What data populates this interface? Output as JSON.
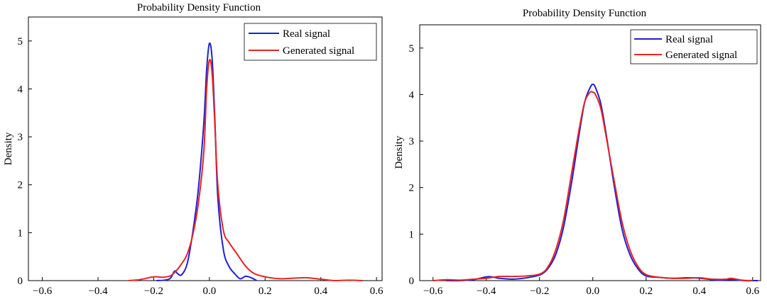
{
  "chart_data": [
    {
      "type": "line",
      "title": "Probability Density Function",
      "xlabel": "",
      "ylabel": "Density",
      "xlim": [
        -0.65,
        0.62
      ],
      "ylim": [
        0,
        5.5
      ],
      "xticks": [
        -0.6,
        -0.4,
        -0.2,
        0.0,
        0.2,
        0.4,
        0.6
      ],
      "xtick_labels": [
        "−0.6",
        "−0.4",
        "−0.2",
        "0.0",
        "0.2",
        "0.4",
        "0.6"
      ],
      "yticks": [
        0,
        1,
        2,
        3,
        4,
        5
      ],
      "ytick_labels": [
        "0",
        "1",
        "2",
        "3",
        "4",
        "5"
      ],
      "grid": false,
      "legend_position": "top-right",
      "series": [
        {
          "name": "Real signal",
          "color": "#1f1fd6",
          "x": [
            -0.19,
            -0.16,
            -0.14,
            -0.125,
            -0.115,
            -0.1,
            -0.08,
            -0.06,
            -0.04,
            -0.02,
            -0.01,
            0.0,
            0.01,
            0.02,
            0.03,
            0.05,
            0.07,
            0.09,
            0.11,
            0.13,
            0.15,
            0.17
          ],
          "y": [
            0.0,
            0.01,
            0.05,
            0.2,
            0.15,
            0.12,
            0.35,
            1.0,
            1.9,
            3.3,
            4.4,
            4.95,
            4.6,
            3.3,
            1.75,
            0.65,
            0.3,
            0.15,
            0.04,
            0.09,
            0.06,
            0.0
          ]
        },
        {
          "name": "Generated signal",
          "color": "#e82323",
          "x": [
            -0.29,
            -0.25,
            -0.2,
            -0.17,
            -0.14,
            -0.12,
            -0.1,
            -0.08,
            -0.06,
            -0.04,
            -0.02,
            -0.01,
            0.0,
            0.01,
            0.02,
            0.03,
            0.05,
            0.07,
            0.1,
            0.13,
            0.16,
            0.2,
            0.25,
            0.3,
            0.35,
            0.4,
            0.45,
            0.5,
            0.55
          ],
          "y": [
            0.0,
            0.02,
            0.08,
            0.07,
            0.1,
            0.2,
            0.35,
            0.55,
            0.95,
            1.6,
            2.7,
            4.0,
            4.6,
            4.3,
            3.2,
            2.0,
            1.05,
            0.8,
            0.55,
            0.3,
            0.15,
            0.08,
            0.04,
            0.05,
            0.06,
            0.03,
            0.0,
            0.01,
            0.0
          ]
        }
      ]
    },
    {
      "type": "line",
      "title": "Probability Density Function",
      "xlabel": "",
      "ylabel": "Density",
      "xlim": [
        -0.65,
        0.63
      ],
      "ylim": [
        0,
        5.5
      ],
      "xticks": [
        -0.6,
        -0.4,
        -0.2,
        0.0,
        0.2,
        0.4,
        0.6
      ],
      "xtick_labels": [
        "−0.6",
        "−0.4",
        "−0.2",
        "0.0",
        "0.2",
        "0.4",
        "0.6"
      ],
      "yticks": [
        0,
        1,
        2,
        3,
        4,
        5
      ],
      "ytick_labels": [
        "0",
        "1",
        "2",
        "3",
        "4",
        "5"
      ],
      "grid": false,
      "legend_position": "top-right",
      "series": [
        {
          "name": "Real signal",
          "color": "#1f1fd6",
          "x": [
            -0.55,
            -0.5,
            -0.45,
            -0.4,
            -0.38,
            -0.35,
            -0.3,
            -0.25,
            -0.2,
            -0.17,
            -0.14,
            -0.11,
            -0.08,
            -0.05,
            -0.03,
            -0.01,
            0.0,
            0.01,
            0.03,
            0.05,
            0.08,
            0.11,
            0.14,
            0.17,
            0.2,
            0.25,
            0.3,
            0.35,
            0.38,
            0.42,
            0.47,
            0.52,
            0.57,
            0.62
          ],
          "y": [
            0.0,
            0.0,
            0.02,
            0.08,
            0.08,
            0.05,
            0.03,
            0.06,
            0.12,
            0.25,
            0.55,
            1.15,
            2.1,
            3.2,
            3.85,
            4.15,
            4.22,
            4.15,
            3.8,
            3.15,
            2.05,
            1.1,
            0.55,
            0.25,
            0.1,
            0.07,
            0.05,
            0.06,
            0.06,
            0.04,
            0.01,
            0.02,
            0.0,
            0.0
          ]
        },
        {
          "name": "Generated signal",
          "color": "#e82323",
          "x": [
            -0.6,
            -0.55,
            -0.5,
            -0.45,
            -0.4,
            -0.35,
            -0.3,
            -0.25,
            -0.2,
            -0.17,
            -0.14,
            -0.11,
            -0.08,
            -0.05,
            -0.03,
            -0.01,
            0.0,
            0.01,
            0.03,
            0.05,
            0.08,
            0.11,
            0.14,
            0.17,
            0.2,
            0.25,
            0.3,
            0.35,
            0.4,
            0.45,
            0.5,
            0.52,
            0.56,
            0.6
          ],
          "y": [
            0.0,
            0.02,
            0.01,
            0.03,
            0.05,
            0.09,
            0.09,
            0.1,
            0.14,
            0.28,
            0.65,
            1.3,
            2.3,
            3.3,
            3.85,
            4.05,
            4.05,
            4.0,
            3.7,
            3.1,
            2.15,
            1.25,
            0.65,
            0.3,
            0.13,
            0.07,
            0.05,
            0.05,
            0.06,
            0.03,
            0.03,
            0.05,
            0.01,
            0.0
          ]
        }
      ]
    }
  ]
}
